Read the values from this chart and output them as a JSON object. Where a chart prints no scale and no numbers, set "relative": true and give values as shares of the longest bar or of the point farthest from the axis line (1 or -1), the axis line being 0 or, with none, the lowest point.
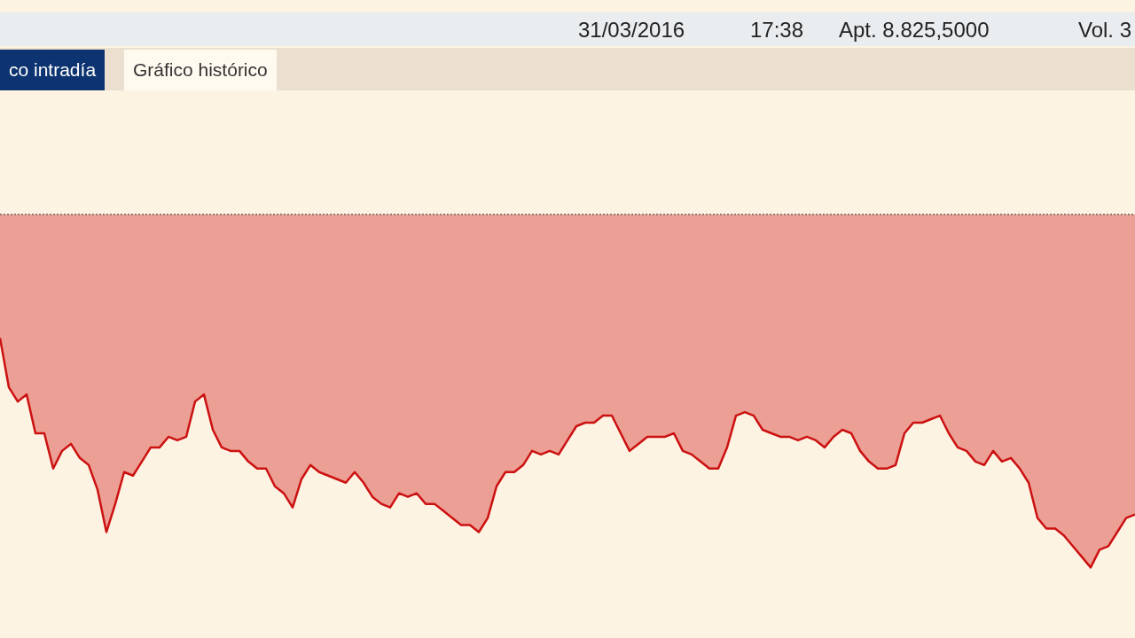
{
  "chart_data": {
    "type": "area",
    "relative": true,
    "legend": false,
    "marker": "none",
    "line_style": "solid",
    "annotations": [
      "31/03/2016",
      "17:38",
      "Apt. 8.825,5000",
      "Vol. 3",
      "co intradía",
      "Gráfico histórico"
    ],
    "ref_lines": [
      {
        "axis": "y",
        "value": 0,
        "line_style": "dotted",
        "color": "#333333"
      }
    ],
    "categories": [
      null,
      null,
      null,
      null,
      null,
      null,
      null,
      null,
      null,
      null,
      null,
      null,
      null,
      null,
      null,
      null,
      null,
      null,
      null,
      null,
      null,
      null,
      null,
      null,
      null,
      null,
      null,
      null,
      null,
      null,
      null,
      null,
      null,
      null,
      null,
      null,
      null,
      null,
      null,
      null,
      null,
      null,
      null,
      null,
      null,
      null,
      null,
      null,
      null,
      null,
      null,
      null,
      null,
      null,
      null,
      null,
      null,
      null,
      null,
      null,
      null,
      null,
      null,
      null,
      null,
      null,
      null,
      null,
      null,
      null,
      null,
      null,
      null,
      null,
      null,
      null,
      null,
      null,
      null,
      null,
      null,
      null,
      null,
      null,
      null,
      null,
      null,
      null,
      null,
      null,
      null,
      null,
      null,
      null,
      null,
      null,
      null,
      null,
      null,
      null,
      null,
      null,
      null,
      null,
      null,
      null,
      null,
      null,
      null,
      null,
      null,
      null,
      null,
      null,
      null,
      null,
      null,
      null,
      null,
      null,
      null,
      null,
      null,
      null,
      null,
      null,
      null,
      null,
      null
    ],
    "series": [
      {
        "color": "#cc1111",
        "values": [
          -0.35,
          -0.49,
          -0.53,
          -0.51,
          -0.62,
          -0.62,
          -0.72,
          -0.67,
          -0.65,
          -0.69,
          -0.71,
          -0.78,
          -0.9,
          -0.82,
          -0.73,
          -0.74,
          -0.7,
          -0.66,
          -0.66,
          -0.63,
          -0.64,
          -0.63,
          -0.53,
          -0.51,
          -0.61,
          -0.66,
          -0.67,
          -0.67,
          -0.7,
          -0.72,
          -0.72,
          -0.77,
          -0.79,
          -0.83,
          -0.75,
          -0.71,
          -0.73,
          -0.74,
          -0.75,
          -0.76,
          -0.73,
          -0.76,
          -0.8,
          -0.82,
          -0.83,
          -0.79,
          -0.8,
          -0.79,
          -0.82,
          -0.82,
          -0.84,
          -0.86,
          -0.88,
          -0.88,
          -0.9,
          -0.86,
          -0.77,
          -0.73,
          -0.73,
          -0.71,
          -0.67,
          -0.68,
          -0.67,
          -0.68,
          -0.64,
          -0.6,
          -0.59,
          -0.59,
          -0.57,
          -0.57,
          -0.62,
          -0.67,
          -0.65,
          -0.63,
          -0.63,
          -0.63,
          -0.62,
          -0.67,
          -0.68,
          -0.7,
          -0.72,
          -0.72,
          -0.66,
          -0.57,
          -0.56,
          -0.57,
          -0.61,
          -0.62,
          -0.63,
          -0.63,
          -0.64,
          -0.63,
          -0.64,
          -0.66,
          -0.63,
          -0.61,
          -0.62,
          -0.67,
          -0.7,
          -0.72,
          -0.72,
          -0.71,
          -0.62,
          -0.59,
          -0.59,
          -0.58,
          -0.57,
          -0.62,
          -0.66,
          -0.67,
          -0.7,
          -0.71,
          -0.67,
          -0.7,
          -0.69,
          -0.72,
          -0.76,
          -0.86,
          -0.89,
          -0.89,
          -0.91,
          -0.94,
          -0.97,
          -1,
          -0.95,
          -0.94,
          -0.9,
          -0.86,
          -0.85
        ]
      }
    ]
  }
}
